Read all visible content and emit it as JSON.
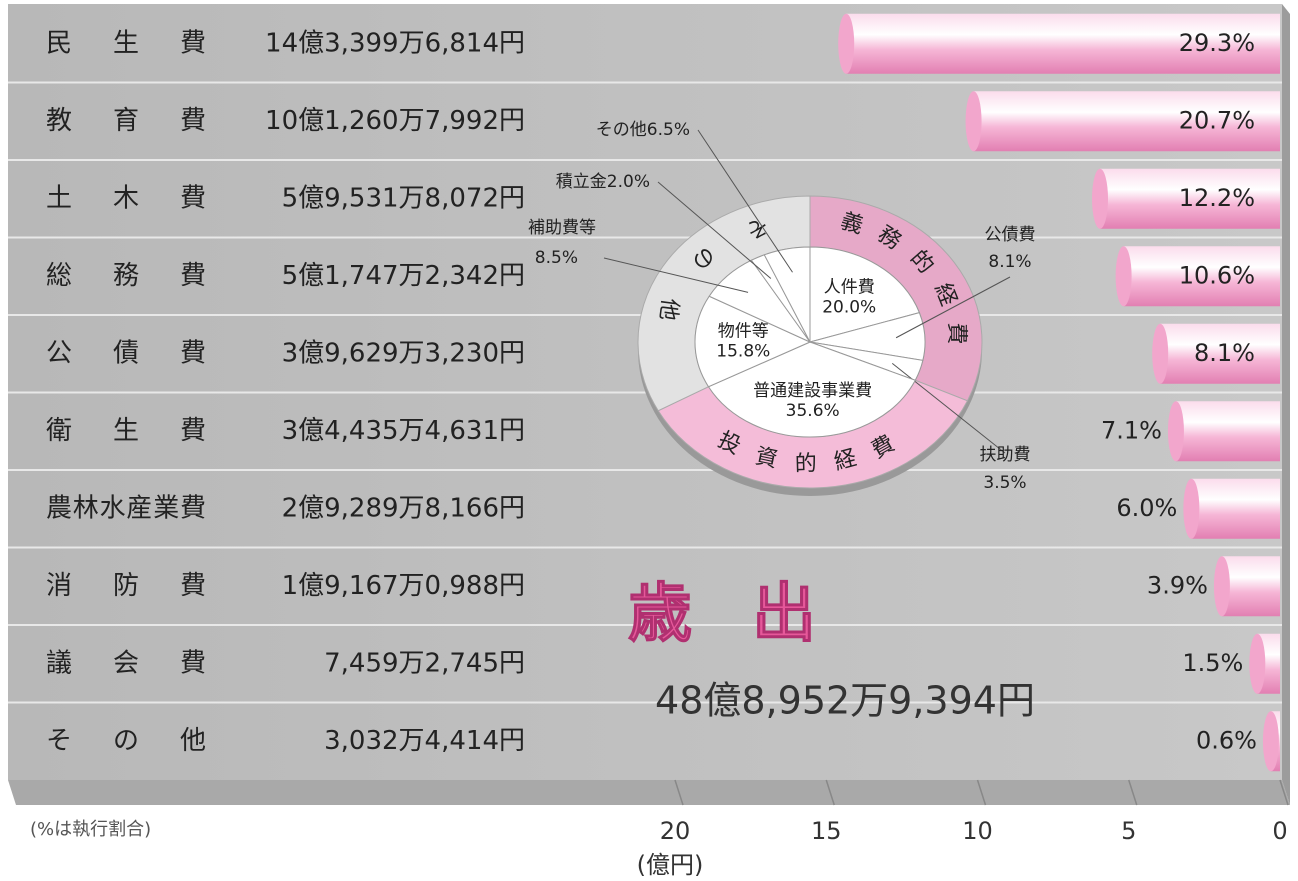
{
  "chart_data": [
    {
      "type": "bar",
      "orientation": "horizontal",
      "title": "歳出",
      "subtitle": "48億8,952万9,394円",
      "note": "(%は執行割合)",
      "xlabel": "(億円)",
      "categories": [
        "民生費",
        "教育費",
        "土木費",
        "総務費",
        "公債費",
        "衛生費",
        "農林水産業費",
        "消防費",
        "議会費",
        "その他"
      ],
      "amounts": [
        "14億3,399万6,814円",
        "10億1,260万7,992円",
        "5億9,531万8,072円",
        "5億1,747万2,342円",
        "3億9,629万3,230円",
        "3億4,435万4,631円",
        "2億9,289万8,166円",
        "1億9,167万0,988円",
        "7,459万2,745円",
        "3,032万4,414円"
      ],
      "values": [
        14.34,
        10.13,
        5.95,
        5.17,
        3.96,
        3.44,
        2.93,
        1.92,
        0.75,
        0.3
      ],
      "percent_labels": [
        "29.3%",
        "20.7%",
        "12.2%",
        "10.6%",
        "8.1%",
        "7.1%",
        "6.0%",
        "3.9%",
        "1.5%",
        "0.6%"
      ],
      "color": "#f2a6cc",
      "xlim": [
        0,
        20
      ],
      "xticks": [
        0,
        5,
        10,
        15,
        20
      ],
      "reversed": true
    },
    {
      "type": "pie",
      "groups": [
        {
          "name": "義務的経費",
          "color": "#e6a9c8"
        },
        {
          "name": "投資的経費",
          "color": "#f4bcd8"
        },
        {
          "name": "その他",
          "color": "#e2e2e2"
        }
      ],
      "slices": [
        {
          "name": "人件費",
          "value": 20.0,
          "label": "20.0%",
          "group": 0
        },
        {
          "name": "公債費",
          "value": 8.1,
          "label": "8.1%",
          "group": 0
        },
        {
          "name": "扶助費",
          "value": 3.5,
          "label": "3.5%",
          "group": 0
        },
        {
          "name": "普通建設事業費",
          "value": 35.6,
          "label": "35.6%",
          "group": 1
        },
        {
          "name": "物件等",
          "value": 15.8,
          "label": "15.8%",
          "group": 2
        },
        {
          "name": "補助費等",
          "value": 8.5,
          "label": "8.5%",
          "group": 2
        },
        {
          "name": "積立金",
          "value": 2.0,
          "label": "2.0%",
          "group": 2
        },
        {
          "name": "その他",
          "value": 6.5,
          "label": "6.5%",
          "group": 2
        }
      ]
    }
  ]
}
